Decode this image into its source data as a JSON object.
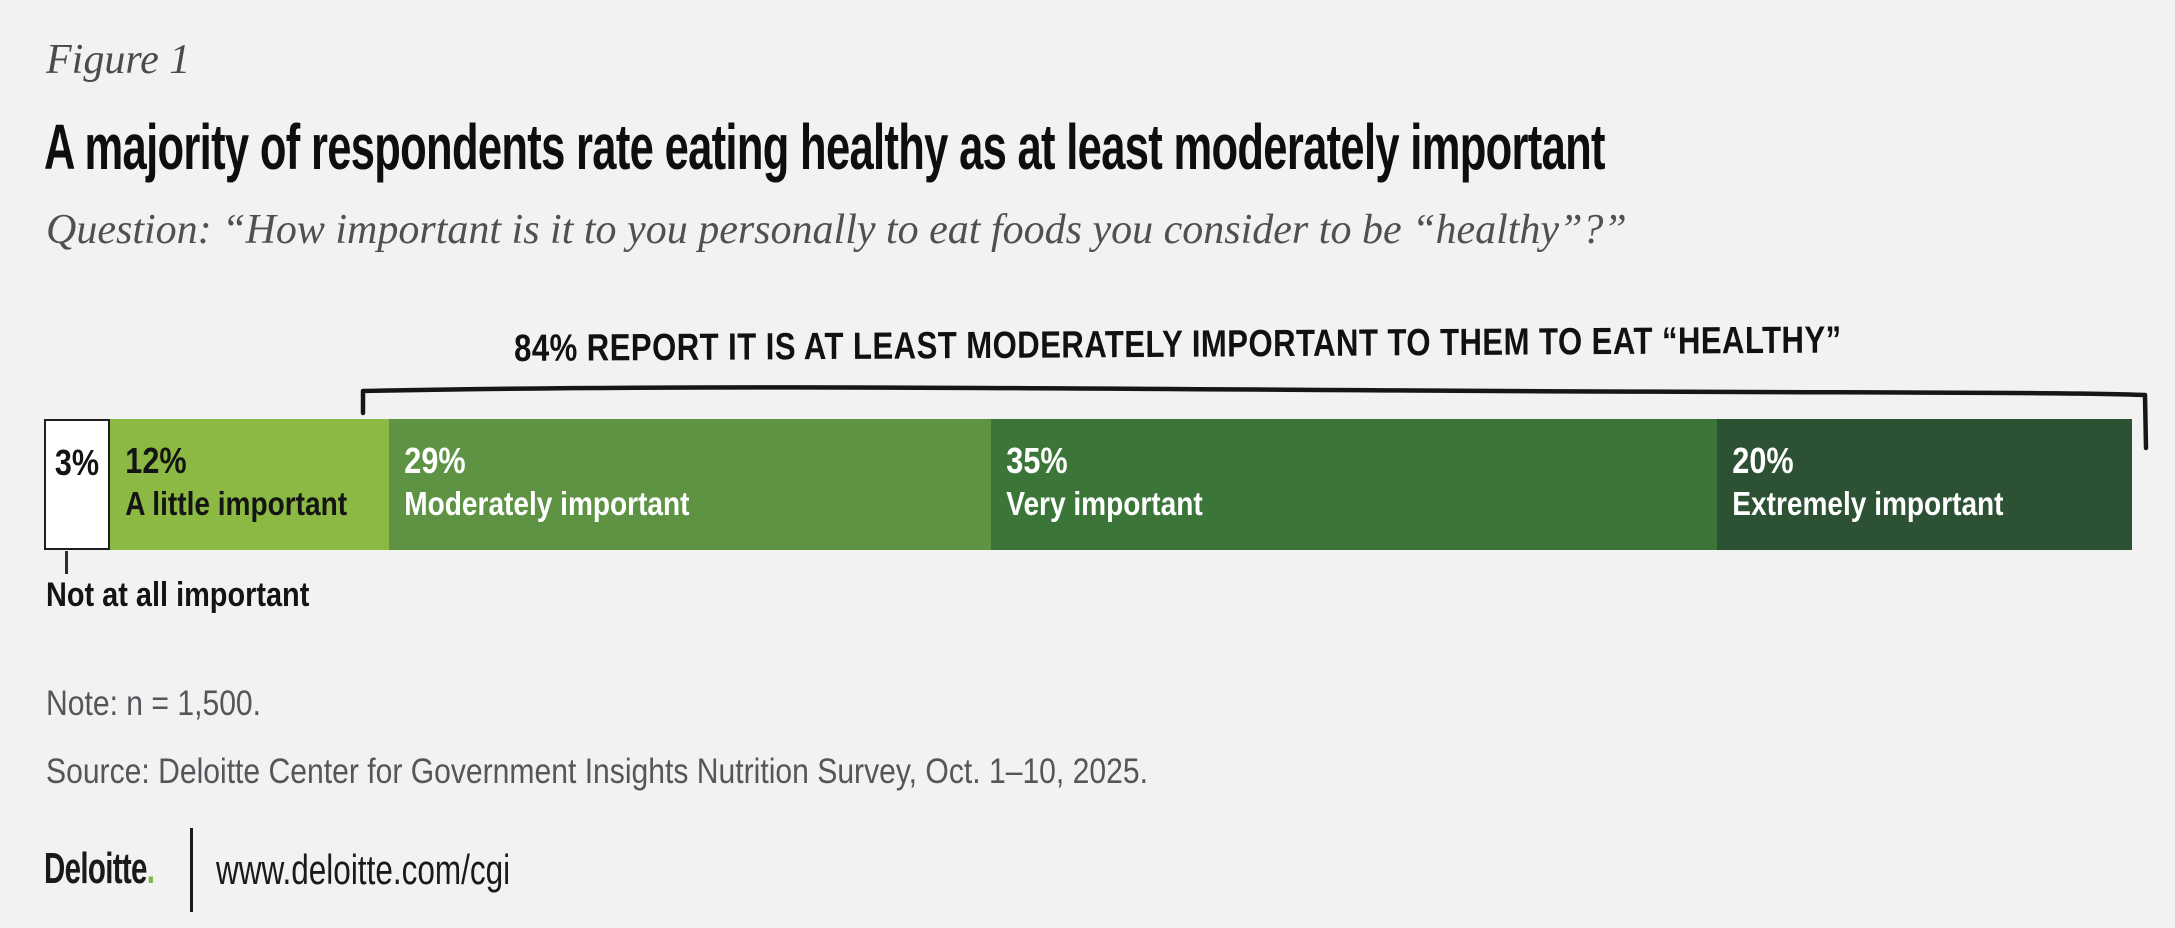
{
  "page": {
    "background": "#f2f2f3"
  },
  "header": {
    "figure_label": "Figure 1",
    "title": "A majority of respondents rate eating healthy as at least moderately important",
    "question": "Question: “How important is it to you personally to eat foods you consider to be “healthy”?”"
  },
  "chart_data": {
    "type": "bar",
    "orientation": "horizontal_stacked",
    "unit": "%",
    "title": "A majority of respondents rate eating healthy as at least moderately important",
    "categories": [
      "Not at all important",
      "A little important",
      "Moderately important",
      "Very important",
      "Extremely important"
    ],
    "values": [
      3,
      12,
      29,
      35,
      20
    ],
    "annotation": "84% REPORT IT IS AT LEAST MODERATELY IMPORTANT TO THEM TO EAT “HEALTHY”",
    "annotation_covers": [
      "Moderately important",
      "Very important",
      "Extremely important"
    ],
    "annotation_total": 84,
    "legend_position": "inside-segments",
    "grid": false,
    "segments": [
      {
        "pct_label": "3%",
        "label": "Not at all important",
        "label_placement": "below-bar",
        "fill": "#ffffff",
        "text_color": "#141414",
        "border": "#1f1f1f"
      },
      {
        "pct_label": "12%",
        "label": "A little important",
        "label_placement": "inside",
        "fill": "#8cb944",
        "text_color": "#141414"
      },
      {
        "pct_label": "29%",
        "label": "Moderately important",
        "label_placement": "inside",
        "fill": "#5d9343",
        "text_color": "#ffffff"
      },
      {
        "pct_label": "35%",
        "label": "Very important",
        "label_placement": "inside",
        "fill": "#3b7638",
        "text_color": "#ffffff"
      },
      {
        "pct_label": "20%",
        "label": "Extremely important",
        "label_placement": "inside",
        "fill": "#2c5233",
        "text_color": "#ffffff"
      }
    ],
    "callout_label": "Not at all important"
  },
  "footnotes": {
    "note": "Note: n = 1,500.",
    "source": "Source: Deloitte Center for Government Insights Nutrition Survey, Oct. 1–10, 2025."
  },
  "footer": {
    "logo_text": "Deloitte",
    "logo_dot": ".",
    "url": "www.deloitte.com/cgi"
  },
  "colors": {
    "accent_green": "#77b943",
    "bracket": "#161616",
    "muted_text": "#55565a"
  }
}
